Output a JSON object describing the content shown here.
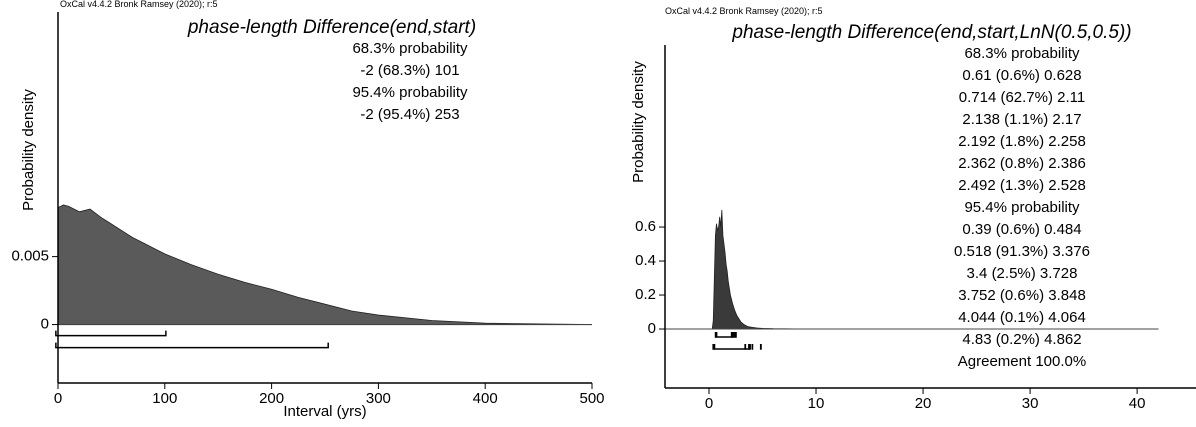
{
  "chart_data": [
    {
      "type": "area",
      "header": "OxCal v4.4.2 Bronk Ramsey (2020); r:5",
      "title": "phase-length Difference(end,start)",
      "annotations": [
        "68.3% probability",
        "-2 (68.3%) 101",
        "95.4% probability",
        "-2 (95.4%) 253"
      ],
      "y_label": "Probability density",
      "x_label": "Interval (yrs)",
      "x": [
        0,
        5,
        10,
        20,
        30,
        40,
        50,
        60,
        70,
        80,
        90,
        100,
        125,
        150,
        175,
        200,
        225,
        250,
        275,
        300,
        350,
        400,
        450,
        500
      ],
      "values": [
        0.0086,
        0.0088,
        0.0087,
        0.0083,
        0.0085,
        0.0079,
        0.0074,
        0.0069,
        0.0064,
        0.006,
        0.0056,
        0.0052,
        0.0044,
        0.0037,
        0.0031,
        0.0026,
        0.002,
        0.0015,
        0.001,
        0.0007,
        0.0003,
        0.0001,
        5e-05,
        0
      ],
      "color": "#5a5a5a",
      "ranges": [
        [
          [
            -2,
            101
          ]
        ],
        [
          [
            -2,
            253
          ]
        ]
      ],
      "xlim": [
        0,
        500
      ],
      "ylim": [
        -0.0043,
        0.023
      ],
      "xticks": [
        0,
        100,
        200,
        300,
        400,
        500
      ],
      "yticks": [
        0,
        0.005
      ]
    },
    {
      "type": "area",
      "header": "OxCal v4.4.2 Bronk Ramsey (2020); r:5",
      "title": "phase-length Difference(end,start,LnN(0.5,0.5))",
      "annotations": [
        "68.3% probability",
        "0.61 (0.6%) 0.628",
        "0.714 (62.7%) 2.11",
        "2.138 (1.1%) 2.17",
        "2.192 (1.8%) 2.258",
        "2.362 (0.8%) 2.386",
        "2.492 (1.3%) 2.528",
        "95.4% probability",
        "0.39 (0.6%) 0.484",
        "0.518 (91.3%) 3.376",
        "3.4 (2.5%) 3.728",
        "3.752 (0.6%) 3.848",
        "4.044 (0.1%) 4.064",
        "4.83 (0.2%) 4.862",
        "Agreement 100.0%"
      ],
      "y_label": "Probability density",
      "x": [
        0.3,
        0.4,
        0.5,
        0.6,
        0.7,
        0.8,
        0.9,
        1.0,
        1.1,
        1.2,
        1.3,
        1.4,
        1.5,
        1.6,
        1.7,
        1.8,
        1.9,
        2.0,
        2.2,
        2.4,
        2.6,
        2.8,
        3.0,
        3.3,
        3.6,
        4.0,
        4.5,
        5,
        6,
        8,
        10,
        42
      ],
      "values": [
        0,
        0.05,
        0.3,
        0.55,
        0.62,
        0.58,
        0.6,
        0.66,
        0.6,
        0.7,
        0.55,
        0.5,
        0.45,
        0.38,
        0.34,
        0.28,
        0.24,
        0.2,
        0.15,
        0.11,
        0.08,
        0.06,
        0.04,
        0.025,
        0.015,
        0.01,
        0.006,
        0.004,
        0.002,
        0.001,
        0,
        0
      ],
      "color": "#3a3a3a",
      "ranges": [
        [
          [
            0.61,
            0.628
          ],
          [
            0.714,
            2.11
          ],
          [
            2.138,
            2.17
          ],
          [
            2.192,
            2.258
          ],
          [
            2.362,
            2.386
          ],
          [
            2.492,
            2.528
          ]
        ],
        [
          [
            0.39,
            0.484
          ],
          [
            0.518,
            3.376
          ],
          [
            3.4,
            3.728
          ],
          [
            3.752,
            3.848
          ],
          [
            4.044,
            4.064
          ],
          [
            4.83,
            4.862
          ]
        ]
      ],
      "xlim": [
        -4.11,
        45.5
      ],
      "ylim": [
        -0.347,
        1.671
      ],
      "xticks": [
        0,
        10,
        20,
        30,
        40
      ],
      "yticks": [
        0,
        0.2,
        0.4,
        0.6
      ]
    }
  ]
}
